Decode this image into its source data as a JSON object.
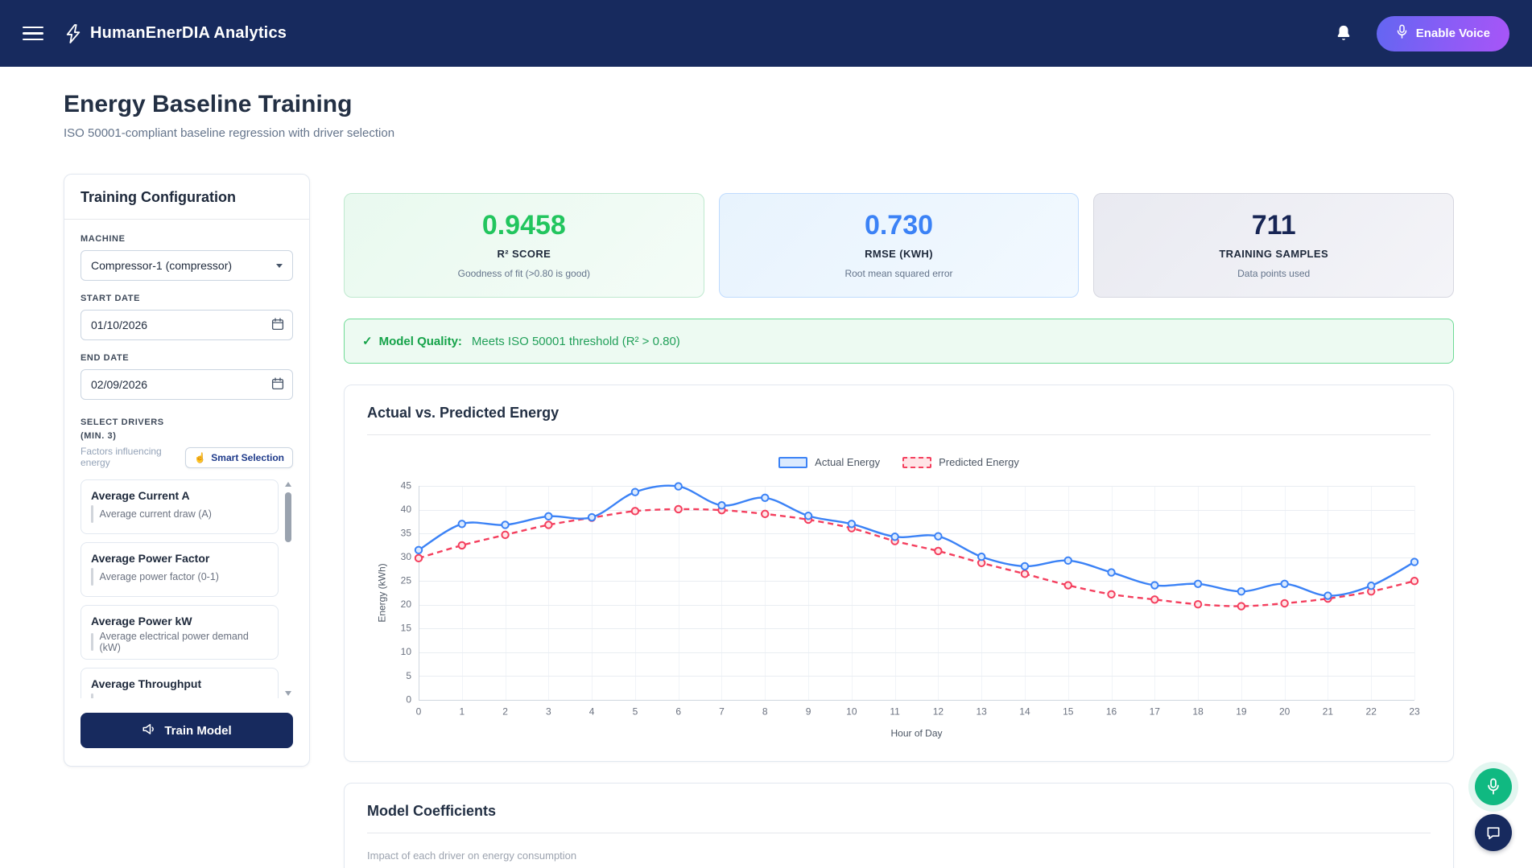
{
  "header": {
    "app_title": "HumanEnerDIA Analytics",
    "enable_voice_label": "Enable Voice"
  },
  "page": {
    "title": "Energy Baseline Training",
    "subtitle": "ISO 50001-compliant baseline regression with driver selection"
  },
  "config_panel": {
    "title": "Training Configuration",
    "machine_label": "MACHINE",
    "machine_value": "Compressor-1 (compressor)",
    "start_date_label": "START DATE",
    "start_date_value": "01/10/2026",
    "end_date_label": "END DATE",
    "end_date_value": "02/09/2026",
    "drivers_label": "SELECT DRIVERS (MIN. 3)",
    "drivers_hint": "Factors influencing energy",
    "smart_selection_label": "Smart Selection",
    "smart_selection_icon": "☝",
    "drivers": [
      {
        "name": "Average Current A",
        "description": "Average current draw (A)"
      },
      {
        "name": "Average Power Factor",
        "description": "Average power factor (0-1)"
      },
      {
        "name": "Average Power kW",
        "description": "Average electrical power demand (kW)"
      },
      {
        "name": "Average Throughput",
        "description": ""
      }
    ],
    "train_button_label": "Train Model"
  },
  "metrics": [
    {
      "value": "0.9458",
      "label": "R² SCORE",
      "sublabel": "Goodness of fit (>0.80 is good)",
      "accent": "#22c55e"
    },
    {
      "value": "0.730",
      "label": "RMSE (KWH)",
      "sublabel": "Root mean squared error",
      "accent": "#3b82f6"
    },
    {
      "value": "711",
      "label": "TRAINING SAMPLES",
      "sublabel": "Data points used",
      "accent": "#172554"
    }
  ],
  "quality_banner": {
    "check_icon": "✓",
    "title": "Model Quality:",
    "message": "Meets ISO 50001 threshold (R² > 0.80)"
  },
  "chart_data": {
    "type": "line",
    "title": "Actual vs. Predicted Energy",
    "xlabel": "Hour of Day",
    "ylabel": "Energy (kWh)",
    "ylim": [
      0,
      45
    ],
    "ytick_step": 5,
    "grid": true,
    "legend_position": "top",
    "x": [
      0,
      1,
      2,
      3,
      4,
      5,
      6,
      7,
      8,
      9,
      10,
      11,
      12,
      13,
      14,
      15,
      16,
      17,
      18,
      19,
      20,
      21,
      22,
      23
    ],
    "series": [
      {
        "name": "Actual Energy",
        "color": "#3b82f6",
        "fill": "#dbeafe",
        "dash": false,
        "values": [
          31.5,
          37.0,
          36.8,
          38.6,
          38.4,
          43.7,
          44.9,
          40.9,
          42.5,
          38.7,
          37.0,
          34.3,
          34.4,
          30.1,
          28.1,
          29.3,
          26.8,
          24.1,
          24.4,
          22.8,
          24.4,
          21.9,
          24.0,
          29.0
        ]
      },
      {
        "name": "Predicted Energy",
        "color": "#f43f5e",
        "fill": "#ffe4e6",
        "dash": true,
        "values": [
          29.8,
          32.5,
          34.7,
          36.8,
          38.3,
          39.7,
          40.1,
          39.9,
          39.1,
          37.9,
          36.1,
          33.4,
          31.3,
          28.8,
          26.5,
          24.1,
          22.2,
          21.1,
          20.1,
          19.7,
          20.3,
          21.3,
          22.8,
          25.0
        ]
      }
    ]
  },
  "coefficients_card": {
    "title": "Model Coefficients",
    "subtitle": "Impact of each driver on energy consumption"
  },
  "colors": {
    "header_navy": "#172a5e",
    "accent_green": "#22c55e",
    "accent_blue": "#3b82f6",
    "accent_navy": "#172554",
    "voice_gradient_start": "#6366f1",
    "voice_gradient_end": "#a855f7",
    "mic_fab_green": "#10b981",
    "banner_green_border": "#6fdb96"
  }
}
